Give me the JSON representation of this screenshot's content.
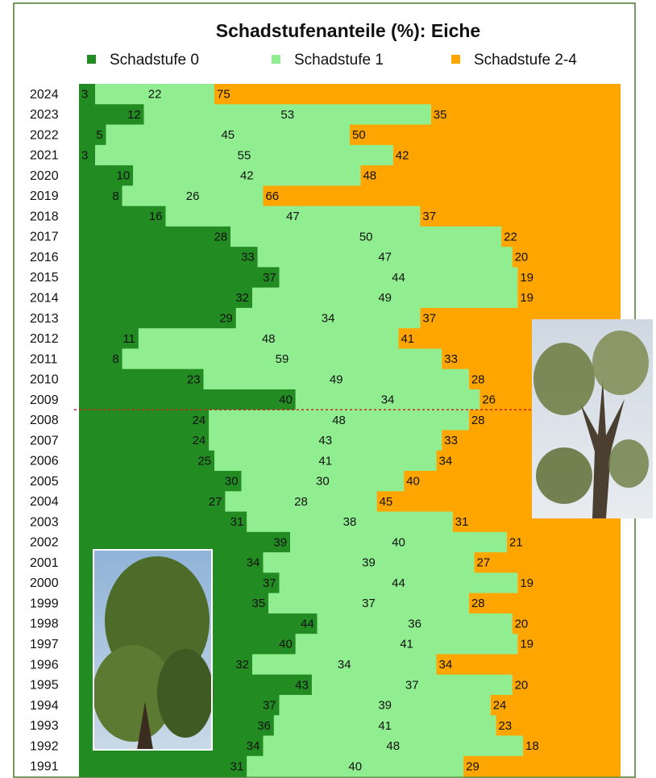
{
  "chart_data": {
    "type": "bar",
    "orientation": "horizontal",
    "stacked": true,
    "title": "Schadstufenanteile (%): Eiche",
    "categories": [
      "2024",
      "2023",
      "2022",
      "2021",
      "2020",
      "2019",
      "2018",
      "2017",
      "2016",
      "2015",
      "2014",
      "2013",
      "2012",
      "2011",
      "2010",
      "2009",
      "2008",
      "2007",
      "2006",
      "2005",
      "2004",
      "2003",
      "2002",
      "2001",
      "2000",
      "1999",
      "1998",
      "1997",
      "1996",
      "1995",
      "1994",
      "1993",
      "1992",
      "1991"
    ],
    "series": [
      {
        "name": "Schadstufe 0",
        "color": "#228b22",
        "values": [
          3,
          12,
          5,
          3,
          10,
          8,
          16,
          28,
          33,
          37,
          32,
          29,
          11,
          8,
          23,
          40,
          24,
          24,
          25,
          30,
          27,
          31,
          39,
          34,
          37,
          35,
          44,
          40,
          32,
          43,
          37,
          36,
          34,
          31
        ]
      },
      {
        "name": "Schadstufe 1",
        "color": "#90ee90",
        "values": [
          22,
          53,
          45,
          55,
          42,
          26,
          47,
          50,
          47,
          44,
          49,
          34,
          48,
          59,
          49,
          34,
          48,
          43,
          41,
          30,
          28,
          38,
          40,
          39,
          44,
          37,
          36,
          41,
          34,
          37,
          39,
          41,
          48,
          40
        ]
      },
      {
        "name": "Schadstufe 2-4",
        "color": "#ffa500",
        "values": [
          75,
          35,
          50,
          42,
          48,
          66,
          37,
          22,
          20,
          19,
          19,
          37,
          41,
          33,
          28,
          26,
          28,
          33,
          34,
          40,
          45,
          31,
          21,
          27,
          19,
          28,
          20,
          19,
          34,
          20,
          24,
          23,
          18,
          29
        ]
      }
    ],
    "xlim": [
      0,
      100
    ],
    "legend": "top"
  }
}
